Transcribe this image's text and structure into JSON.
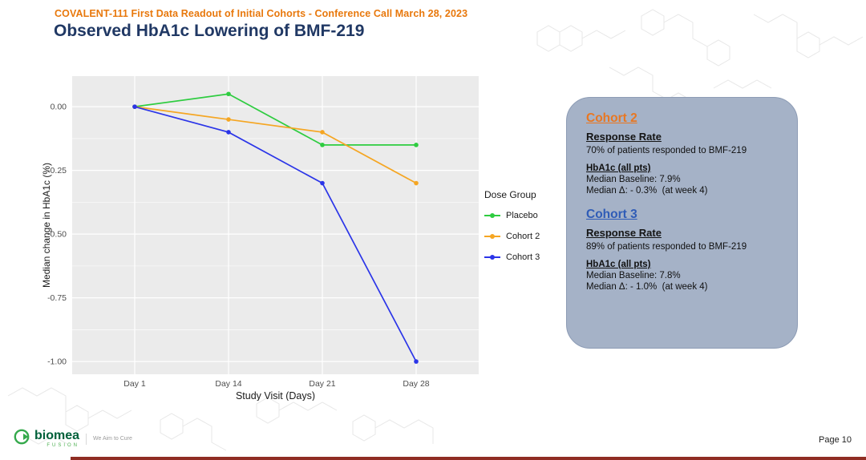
{
  "slide": {
    "kicker": "COVALENT-111 First Data Readout of Initial Cohorts - Conference Call March 28, 2023",
    "title": "Observed HbA1c Lowering of BMF-219",
    "page_label": "Page 10"
  },
  "colors": {
    "kicker": "#E8780C",
    "title": "#203864",
    "panel_bg": "#EBEBEB",
    "infobox_bg": "#A5B2C7",
    "cohort2_heading": "#E87722",
    "cohort3_heading": "#2F5CB7"
  },
  "chart_data": {
    "type": "line",
    "x": [
      "Day 1",
      "Day 14",
      "Day 21",
      "Day 28"
    ],
    "series": [
      {
        "name": "Placebo",
        "color": "#2ECC40",
        "values": [
          0.0,
          0.05,
          -0.15,
          -0.15
        ]
      },
      {
        "name": "Cohort 2",
        "color": "#F5A623",
        "values": [
          0.0,
          -0.05,
          -0.1,
          -0.3
        ]
      },
      {
        "name": "Cohort 3",
        "color": "#2B35E8",
        "values": [
          0.0,
          -0.1,
          -0.3,
          -1.0
        ]
      }
    ],
    "xlabel": "Study Visit (Days)",
    "ylabel": "Median change in HbA1c (%)",
    "yticks": [
      0.0,
      -0.25,
      -0.5,
      -0.75,
      -1.0
    ],
    "ylim": [
      0.12,
      -1.05
    ],
    "legend_title": "Dose Group",
    "legend_position": "right",
    "grid": true
  },
  "infobox": {
    "cohort2": {
      "heading": "Cohort 2",
      "response_rate_label": "Response Rate",
      "response_rate_text": "70% of patients responded to BMF-219",
      "hba1c_label": "HbA1c (all pts)",
      "baseline": "Median Baseline: 7.9%",
      "delta": "Median Δ: - 0.3%  (at week 4)"
    },
    "cohort3": {
      "heading": "Cohort 3",
      "response_rate_label": "Response Rate",
      "response_rate_text": "89% of patients responded to BMF-219",
      "hba1c_label": "HbA1c (all pts)",
      "baseline": "Median Baseline: 7.8%",
      "delta": "Median Δ: - 1.0%  (at week 4)"
    }
  },
  "logo": {
    "name": "biomea",
    "sub": "FUSION",
    "tagline": "We Aim to Cure"
  }
}
